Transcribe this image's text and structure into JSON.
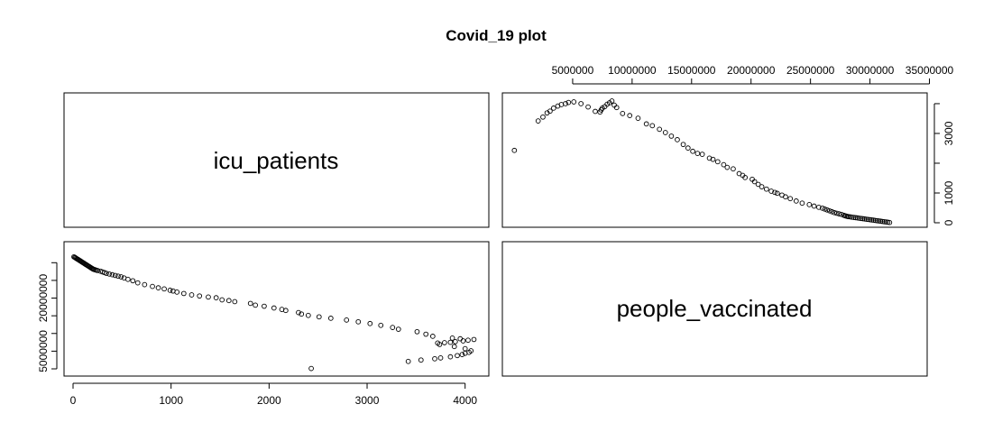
{
  "chart_data": {
    "type": "scatter",
    "title": "Covid_19 plot",
    "variables": [
      "icu_patients",
      "people_vaccinated"
    ],
    "ticks": {
      "icu_patients": {
        "bottom": [
          0,
          1000,
          2000,
          3000,
          4000
        ],
        "right": [
          0,
          1000,
          3000
        ]
      },
      "people_vaccinated": {
        "top": [
          5000000,
          10000000,
          15000000,
          20000000,
          25000000,
          30000000,
          35000000
        ],
        "left": [
          5000000,
          20000000
        ]
      }
    },
    "axis_ranges": {
      "icu_patients": [
        0,
        4150
      ],
      "people_vaccinated": [
        0,
        33900000
      ]
    },
    "series": [
      {
        "values": [
          [
            2430,
            100000
          ],
          [
            3420,
            2100000
          ],
          [
            3550,
            2500000
          ],
          [
            3690,
            2850000
          ],
          [
            3750,
            3100000
          ],
          [
            3850,
            3400000
          ],
          [
            3920,
            3750000
          ],
          [
            3970,
            4050000
          ],
          [
            4000,
            4400000
          ],
          [
            4040,
            4650000
          ],
          [
            4060,
            5100000
          ],
          [
            4000,
            5700000
          ],
          [
            3890,
            6300000
          ],
          [
            3740,
            6900000
          ],
          [
            3720,
            7300000
          ],
          [
            3790,
            7400000
          ],
          [
            3850,
            7500000
          ],
          [
            3900,
            7700000
          ],
          [
            3980,
            7900000
          ],
          [
            4030,
            8100000
          ],
          [
            4090,
            8300000
          ],
          [
            3950,
            8500000
          ],
          [
            3870,
            8700000
          ],
          [
            3670,
            9200000
          ],
          [
            3600,
            9800000
          ],
          [
            3510,
            10500000
          ],
          [
            3320,
            11200000
          ],
          [
            3260,
            11700000
          ],
          [
            3140,
            12300000
          ],
          [
            3030,
            12800000
          ],
          [
            2910,
            13300000
          ],
          [
            2790,
            13800000
          ],
          [
            2630,
            14300000
          ],
          [
            2510,
            14700000
          ],
          [
            2400,
            15100000
          ],
          [
            2330,
            15500000
          ],
          [
            2300,
            15900000
          ],
          [
            2170,
            16500000
          ],
          [
            2130,
            16800000
          ],
          [
            2050,
            17200000
          ],
          [
            1950,
            17700000
          ],
          [
            1860,
            18000000
          ],
          [
            1810,
            18500000
          ],
          [
            1650,
            19000000
          ],
          [
            1590,
            19300000
          ],
          [
            1520,
            19500000
          ],
          [
            1460,
            20100000
          ],
          [
            1380,
            20300000
          ],
          [
            1290,
            20600000
          ],
          [
            1210,
            20900000
          ],
          [
            1130,
            21300000
          ],
          [
            1060,
            21700000
          ],
          [
            1020,
            22000000
          ],
          [
            990,
            22200000
          ],
          [
            930,
            22600000
          ],
          [
            870,
            22900000
          ],
          [
            810,
            23300000
          ],
          [
            730,
            23800000
          ],
          [
            660,
            24300000
          ],
          [
            610,
            24900000
          ],
          [
            560,
            25300000
          ],
          [
            520,
            25700000
          ],
          [
            490,
            26000000
          ],
          [
            460,
            26200000
          ],
          [
            430,
            26400000
          ],
          [
            400,
            26600000
          ],
          [
            370,
            26800000
          ],
          [
            340,
            27000000
          ],
          [
            320,
            27200000
          ],
          [
            300,
            27400000
          ],
          [
            280,
            27600000
          ],
          [
            250,
            27800000
          ],
          [
            235,
            27900000
          ],
          [
            225,
            28000000
          ],
          [
            212,
            28100000
          ],
          [
            204,
            28200000
          ],
          [
            196,
            28350000
          ],
          [
            187,
            28500000
          ],
          [
            179,
            28650000
          ],
          [
            170,
            28800000
          ],
          [
            162,
            28950000
          ],
          [
            153,
            29100000
          ],
          [
            145,
            29250000
          ],
          [
            136,
            29400000
          ],
          [
            128,
            29550000
          ],
          [
            119,
            29700000
          ],
          [
            111,
            29850000
          ],
          [
            103,
            30000000
          ],
          [
            94,
            30150000
          ],
          [
            86,
            30300000
          ],
          [
            77,
            30450000
          ],
          [
            69,
            30600000
          ],
          [
            60,
            30750000
          ],
          [
            52,
            30900000
          ],
          [
            43,
            31050000
          ],
          [
            35,
            31200000
          ],
          [
            26,
            31350000
          ],
          [
            18,
            31500000
          ],
          [
            9,
            31650000
          ]
        ]
      }
    ]
  }
}
